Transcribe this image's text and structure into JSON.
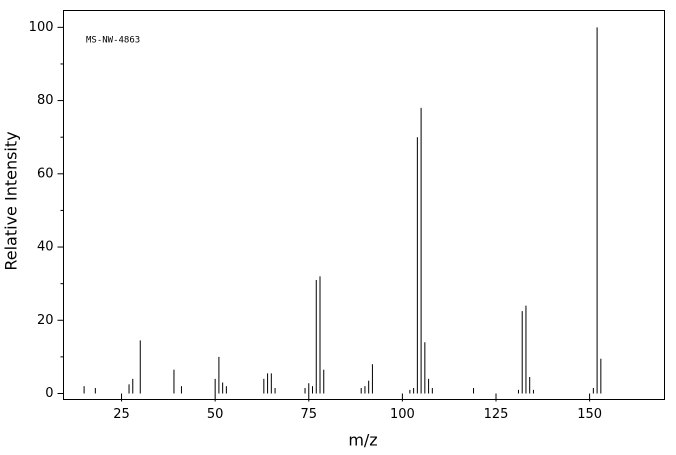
{
  "chart_data": {
    "type": "stem",
    "annotation": "MS-NW-4863",
    "xlabel": "m/z",
    "ylabel": "Relative Intensity",
    "x": [
      15,
      18,
      27,
      28,
      30,
      39,
      41,
      50,
      51,
      52,
      53,
      63,
      64,
      65,
      66,
      74,
      75,
      76,
      77,
      78,
      79,
      89,
      90,
      91,
      92,
      102,
      103,
      104,
      105,
      106,
      107,
      108,
      119,
      131,
      132,
      133,
      134,
      135,
      151,
      152,
      153
    ],
    "values": [
      2,
      1.5,
      2.5,
      4,
      14.5,
      6.5,
      2,
      4,
      10,
      3,
      2,
      4,
      5.5,
      5.5,
      1.5,
      1.5,
      2.8,
      2,
      31,
      32,
      6.5,
      1.5,
      2,
      3.5,
      8,
      1,
      1.5,
      70,
      78,
      14,
      4,
      1.5,
      1.5,
      1,
      22.5,
      24,
      4.5,
      1,
      1.5,
      100,
      9.5
    ],
    "color": "#000000",
    "xlim": [
      9.5,
      170
    ],
    "xticks": [
      25,
      50,
      75,
      100,
      125,
      150
    ],
    "ylim": [
      0,
      104.6
    ],
    "yticks": [
      0,
      20,
      40,
      60,
      80,
      100
    ],
    "yminorticks": [
      10,
      30,
      50,
      70,
      90
    ]
  }
}
